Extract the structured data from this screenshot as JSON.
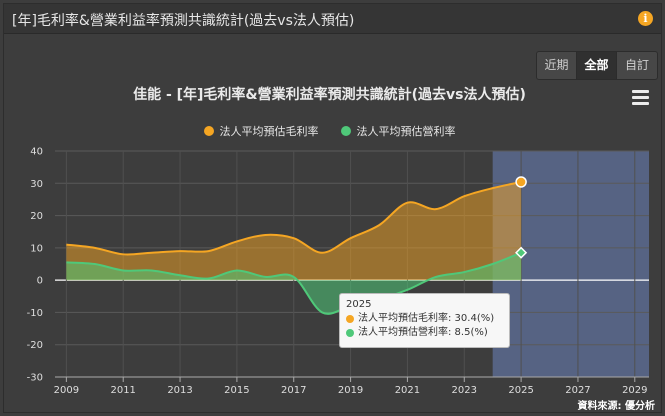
{
  "header": {
    "title": "[年]毛利率&營業利益率預測共識統計(過去vs法人預估)"
  },
  "range_buttons": [
    "近期",
    "全部",
    "自訂"
  ],
  "range_selected": "全部",
  "colors": {
    "gross": "#f5a623",
    "operating": "#4fc879",
    "forecast_band": "#5a6a8f"
  },
  "tooltip": {
    "year": "2025",
    "rows": [
      {
        "label": "法人平均預估毛利率: 30.4(%)",
        "color": "#f5a623"
      },
      {
        "label": "法人平均預估營利率: 8.5(%)",
        "color": "#4fc879"
      }
    ]
  },
  "source": "資料來源: 優分析",
  "chart_data": {
    "type": "area",
    "title": "佳能 - [年]毛利率&營業利益率預測共識統計(過去vs法人預估)",
    "x_range": [
      2008.6,
      2029.5
    ],
    "ylim": [
      -30,
      40
    ],
    "y_ticks": [
      40,
      30,
      20,
      10,
      0,
      -10,
      -20,
      -30
    ],
    "x_ticks": [
      "2009",
      "2011",
      "2013",
      "2015",
      "2017",
      "2019",
      "2021",
      "2023",
      "2025",
      "2027",
      "2029"
    ],
    "forecast_start": 2024,
    "grid": true,
    "legend_position": "top",
    "series": [
      {
        "name": "法人平均預估毛利率",
        "x": [
          2009,
          2010,
          2011,
          2012,
          2013,
          2014,
          2015,
          2016,
          2017,
          2018,
          2019,
          2020,
          2021,
          2022,
          2023,
          2024,
          2025
        ],
        "values": [
          11,
          10,
          8,
          8.5,
          9,
          9,
          12,
          14,
          13,
          8.5,
          13,
          17,
          24,
          22,
          26,
          28.5,
          30.4
        ]
      },
      {
        "name": "法人平均預估營利率",
        "x": [
          2009,
          2010,
          2011,
          2012,
          2013,
          2014,
          2015,
          2016,
          2017,
          2018,
          2019,
          2020,
          2021,
          2022,
          2023,
          2024,
          2025
        ],
        "values": [
          5.5,
          5,
          3,
          3,
          1.5,
          0.5,
          3,
          1,
          1,
          -10,
          -8,
          -6,
          -3,
          1,
          2.5,
          5,
          8.5
        ]
      }
    ]
  }
}
